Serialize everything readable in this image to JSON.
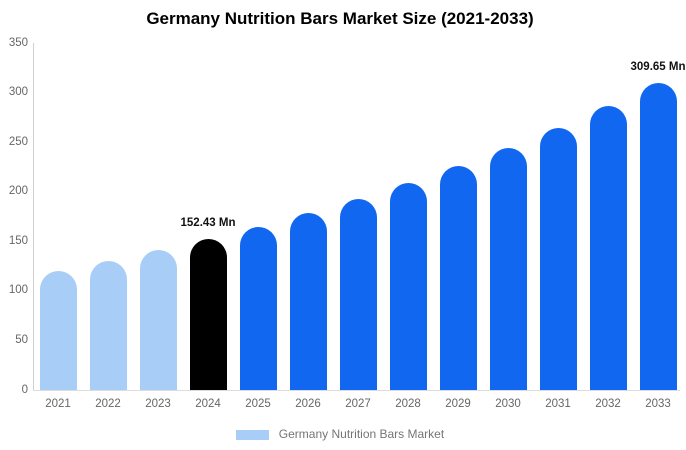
{
  "title": "Germany Nutrition Bars Market Size (2021-2033)",
  "legend": {
    "label": "Germany Nutrition Bars Market",
    "swatch_color": "#a8cef7"
  },
  "colors": {
    "light_blue": "#a8cef7",
    "primary_blue": "#1167f0",
    "highlight_black": "#000000",
    "axis_line": "#d0d0d0",
    "tick_text": "#666666",
    "value_label_text": "#111111"
  },
  "chart_data": {
    "type": "bar",
    "title": "Germany Nutrition Bars Market Size (2021-2033)",
    "categories": [
      "2021",
      "2022",
      "2023",
      "2024",
      "2025",
      "2026",
      "2027",
      "2028",
      "2029",
      "2030",
      "2031",
      "2032",
      "2033"
    ],
    "values": [
      120.4,
      130.3,
      141.0,
      152.43,
      164.9,
      178.4,
      193.0,
      208.8,
      225.9,
      244.4,
      264.4,
      286.1,
      309.65
    ],
    "bar_colors": [
      "#a8cef7",
      "#a8cef7",
      "#a8cef7",
      "#000000",
      "#1167f0",
      "#1167f0",
      "#1167f0",
      "#1167f0",
      "#1167f0",
      "#1167f0",
      "#1167f0",
      "#1167f0",
      "#1167f0"
    ],
    "data_labels": [
      null,
      null,
      null,
      "152.43 Mn",
      null,
      null,
      null,
      null,
      null,
      null,
      null,
      null,
      "309.65 Mn"
    ],
    "xlabel": "",
    "ylabel": "",
    "ylim": [
      0,
      350
    ],
    "yticks": [
      0,
      50,
      100,
      150,
      200,
      250,
      300,
      350
    ],
    "grid": false,
    "legend_position": "bottom",
    "legend_label": "Germany Nutrition Bars Market"
  }
}
